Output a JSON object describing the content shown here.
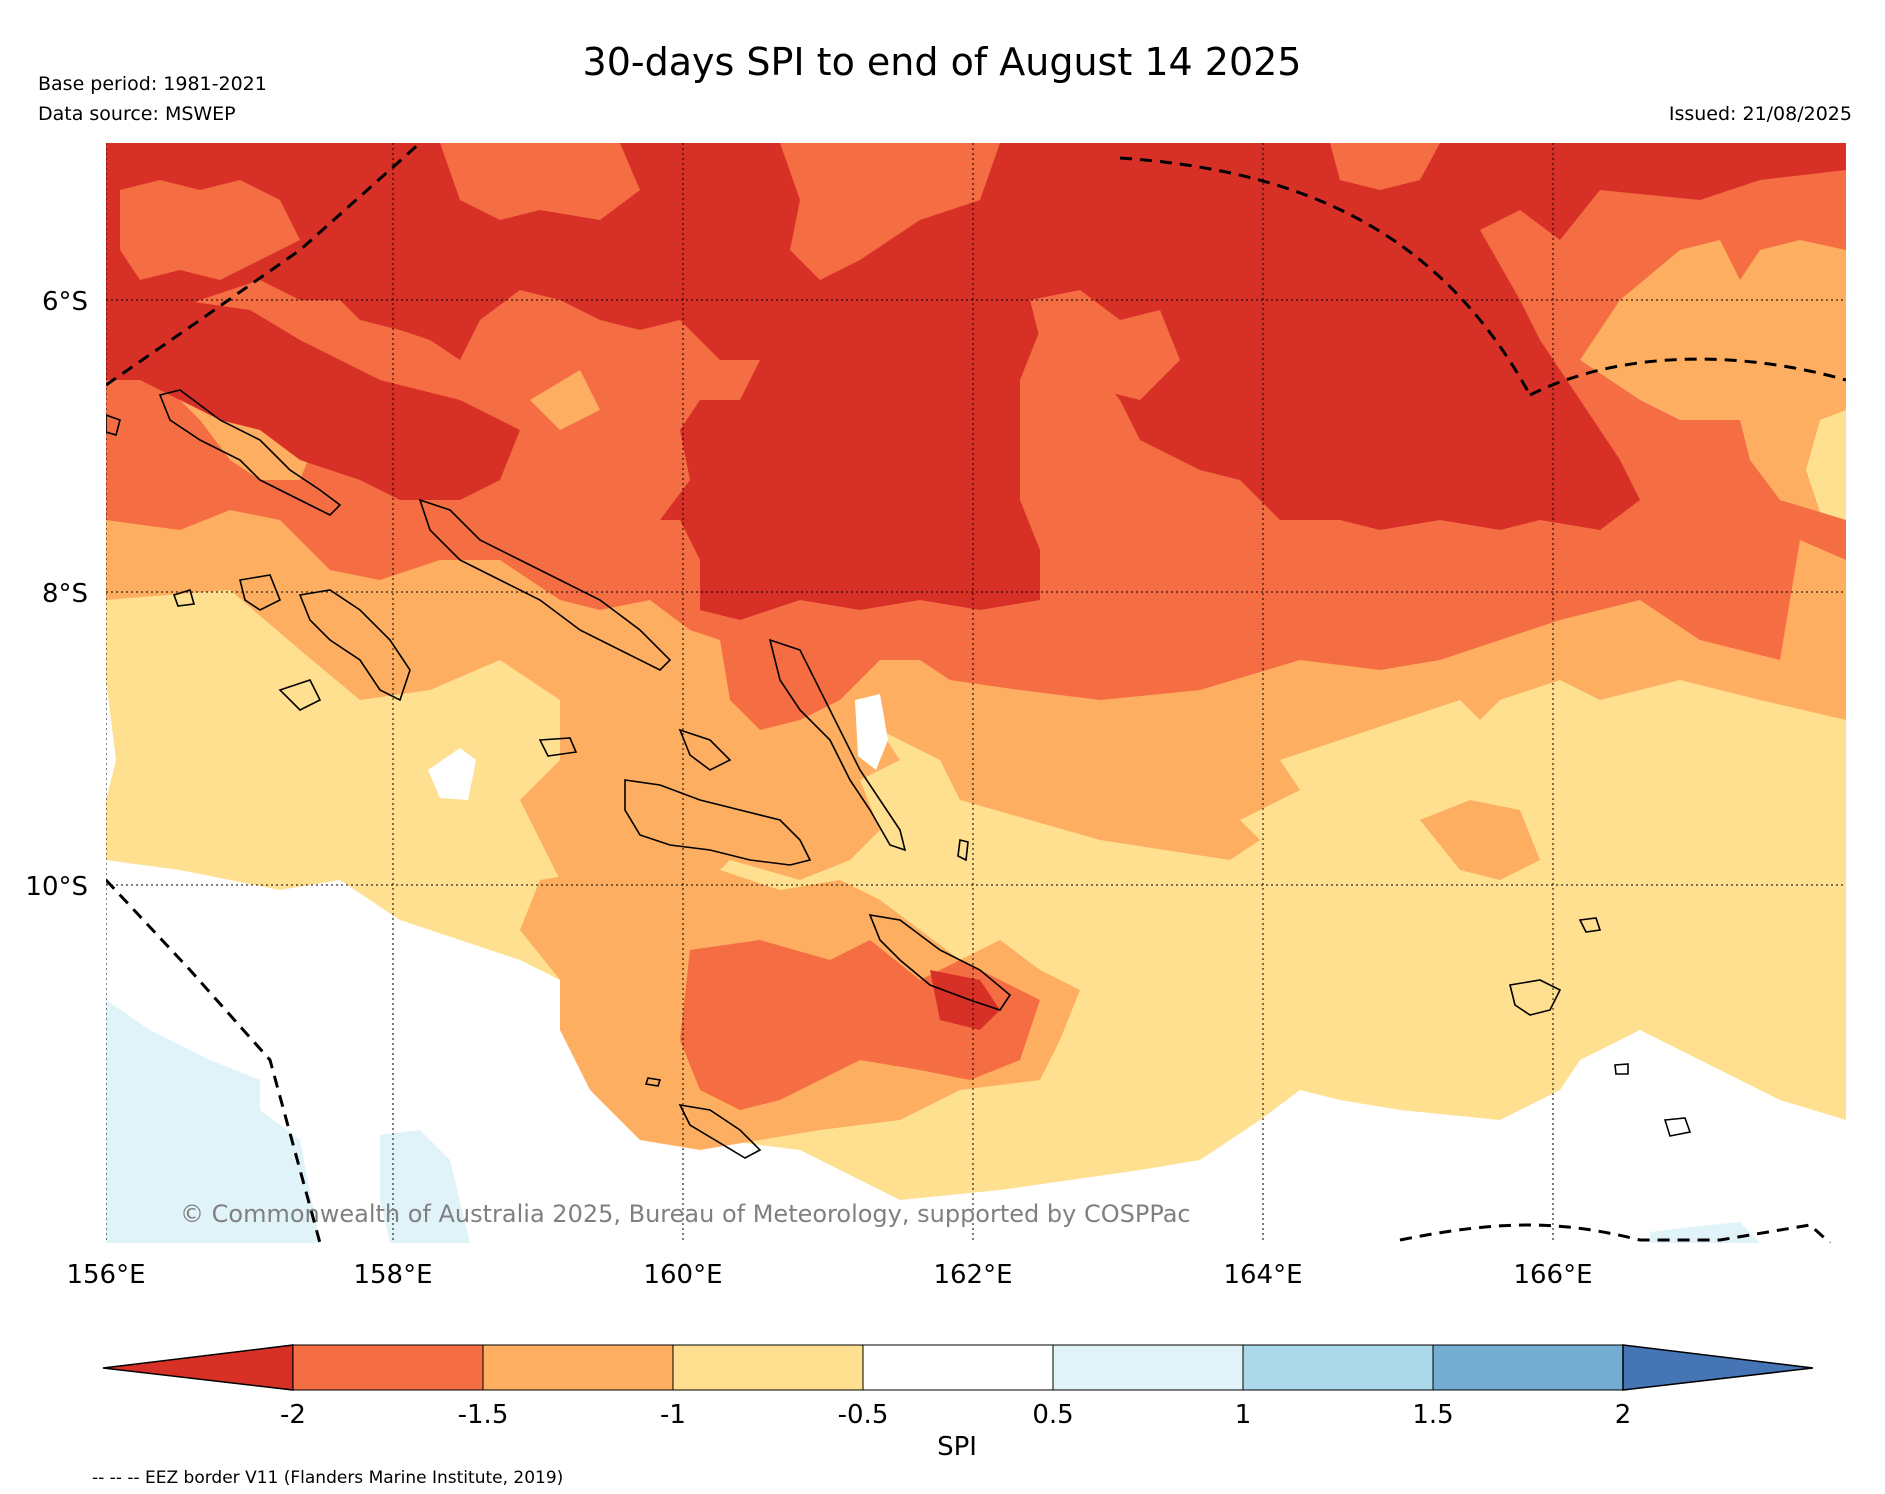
{
  "header": {
    "title": "30-days SPI to end of August 14 2025",
    "base_period": "Base period: 1981-2021",
    "data_source": "Data source: MSWEP",
    "issued": "Issued: 21/08/2025"
  },
  "map": {
    "copyright": "© Commonwealth of Australia 2025, Bureau of Meteorology, supported by COSPPac",
    "lon_labels": [
      "156°E",
      "158°E",
      "160°E",
      "162°E",
      "164°E",
      "166°E"
    ],
    "lat_labels": [
      "6°S",
      "8°S",
      "10°S"
    ],
    "lon_range": [
      156,
      168
    ],
    "lat_range": [
      -4.9,
      -12.5
    ],
    "gridlines": "dotted",
    "coastline_color": "#000000",
    "eez_line_style": "dashed"
  },
  "colorbar": {
    "label": "SPI",
    "ticks": [
      "-2",
      "-1.5",
      "-1",
      "-0.5",
      "0.5",
      "1",
      "1.5",
      "2"
    ],
    "extend": "both",
    "colors": {
      "below_-2": "#d73027",
      "-2_to_-1.5": "#f46d43",
      "-1.5_to_-1": "#fdae61",
      "-1_to_-0.5": "#fee090",
      "-0.5_to_0.5": "#ffffff",
      "0.5_to_1": "#e0f3f8",
      "1_to_1.5": "#abd9e9",
      "1.5_to_2": "#74add1",
      "above_2": "#4575b4"
    }
  },
  "footer": {
    "eez_note": "-- -- -- EEZ border V11 (Flanders Marine Institute, 2019)"
  }
}
